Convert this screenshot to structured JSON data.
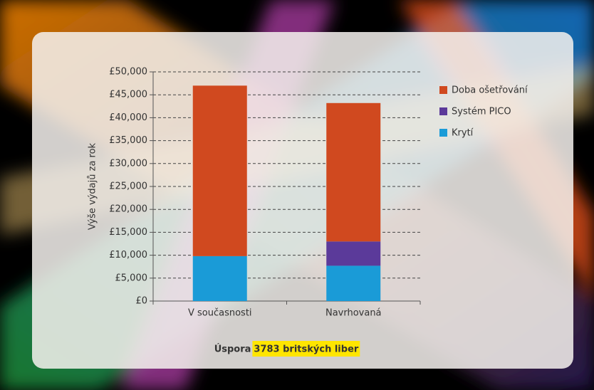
{
  "chart_data": {
    "type": "stacked-bar",
    "y_label": "Výše výdajů za rok",
    "categories": [
      "V současnosti",
      "Navrhovaná"
    ],
    "series": [
      {
        "name": "Krytí",
        "color": "#1a9bd7",
        "values": [
          9800,
          7700
        ]
      },
      {
        "name": "Systém PICO",
        "color": "#5b3a9a",
        "values": [
          0,
          5300
        ]
      },
      {
        "name": "Doba ošetřování",
        "color": "#d0491f",
        "values": [
          37200,
          30200
        ]
      }
    ],
    "ylim": [
      0,
      50000
    ],
    "yticks": [
      {
        "value": 0,
        "label": "£0"
      },
      {
        "value": 5000,
        "label": "£5,000"
      },
      {
        "value": 10000,
        "label": "£10,000"
      },
      {
        "value": 15000,
        "label": "£15,000"
      },
      {
        "value": 20000,
        "label": "£20,000"
      },
      {
        "value": 25000,
        "label": "£25,000"
      },
      {
        "value": 30000,
        "label": "£30,000"
      },
      {
        "value": 35000,
        "label": "£35,000"
      },
      {
        "value": 40000,
        "label": "£40,000"
      },
      {
        "value": 45000,
        "label": "£45,000"
      },
      {
        "value": 50000,
        "label": "£50,000"
      }
    ],
    "grid": true,
    "legend_order": [
      "Doba ošetřování",
      "Systém PICO",
      "Krytí"
    ],
    "annotation": {
      "prefix": "Úspora",
      "highlight": "3783 britských liber"
    }
  }
}
